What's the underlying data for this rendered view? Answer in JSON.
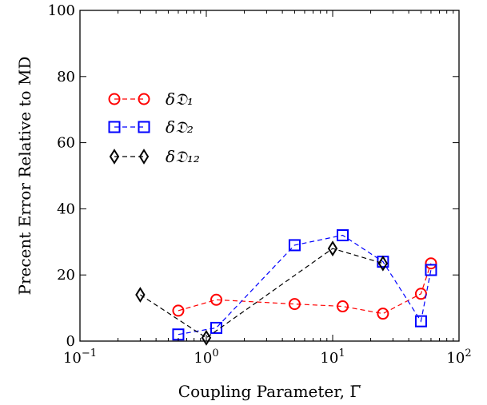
{
  "chart_data": {
    "type": "scatter",
    "xlabel": "Coupling Parameter, Γ̅",
    "ylabel": "Precent Error Relative to MD",
    "x_scale": "log",
    "xlim": [
      0.1,
      100
    ],
    "ylim": [
      0,
      100
    ],
    "x_ticks": [
      {
        "value": 0.1,
        "base": "10",
        "exp": "−1"
      },
      {
        "value": 1,
        "base": "10",
        "exp": "0"
      },
      {
        "value": 10,
        "base": "10",
        "exp": "1"
      },
      {
        "value": 100,
        "base": "10",
        "exp": "2"
      }
    ],
    "y_ticks": [
      {
        "value": 0,
        "label": "0"
      },
      {
        "value": 20,
        "label": "20"
      },
      {
        "value": 40,
        "label": "40"
      },
      {
        "value": 60,
        "label": "60"
      },
      {
        "value": 80,
        "label": "80"
      },
      {
        "value": 100,
        "label": "100"
      }
    ],
    "legend_position": "upper-left",
    "grid": false,
    "series": [
      {
        "name": "δ𝔇₁",
        "color": "#ff0000",
        "marker": "circle",
        "x": [
          0.6,
          1.2,
          5,
          12,
          25,
          50,
          60
        ],
        "y": [
          9.2,
          12.5,
          11.2,
          10.5,
          8.3,
          14.3,
          23.5
        ]
      },
      {
        "name": "δ𝔇₂",
        "color": "#0000ff",
        "marker": "square",
        "x": [
          0.6,
          1.2,
          5,
          12,
          25,
          50,
          60
        ],
        "y": [
          2.0,
          4.0,
          29.0,
          32.0,
          24.0,
          6.0,
          21.5
        ]
      },
      {
        "name": "δ𝔇₁₂",
        "color": "#000000",
        "marker": "diamond",
        "x": [
          0.3,
          1.0,
          10,
          25
        ],
        "y": [
          14.0,
          1.0,
          28.0,
          23.5
        ]
      }
    ]
  }
}
